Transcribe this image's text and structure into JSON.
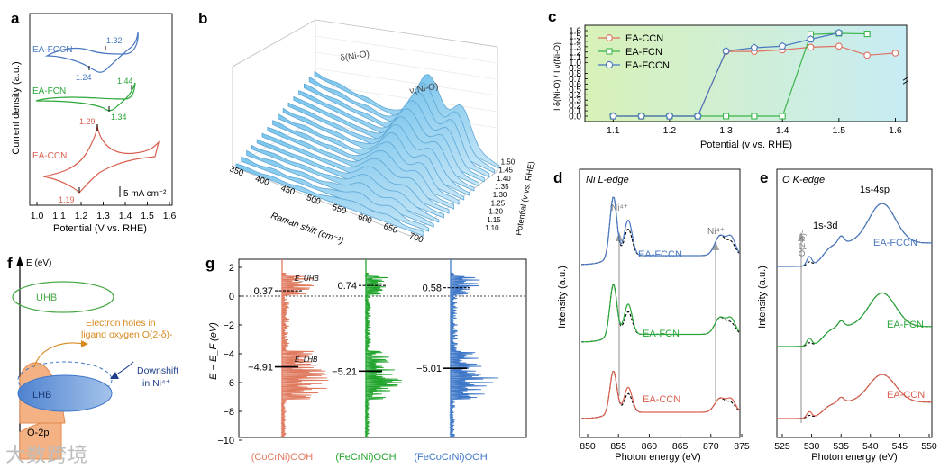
{
  "panels": {
    "a": {
      "letter": "a",
      "ylabel": "Current density (a.u.)",
      "xlabel": "Potential (V vs. RHE)",
      "ticks": [
        "1.0",
        "1.1",
        "1.2",
        "1.3",
        "1.4",
        "1.5",
        "1.6"
      ],
      "scale_bar": "5 mA cm⁻²",
      "curves": [
        {
          "name": "EA-FCCN",
          "color": "#4a78c0",
          "anodic": "1.32",
          "cathodic": "1.24"
        },
        {
          "name": "EA-FCN",
          "color": "#2aa63a",
          "anodic": "1.44",
          "cathodic": "1.34"
        },
        {
          "name": "EA-CCN",
          "color": "#d9604f",
          "anodic": "1.29",
          "cathodic": "1.19"
        }
      ]
    },
    "b": {
      "letter": "b",
      "xlabel": "Raman shift (cm⁻¹)",
      "ylabel": "Potential (v vs. RHE)",
      "xticks": [
        "350",
        "400",
        "450",
        "500",
        "550",
        "600",
        "650",
        "700"
      ],
      "yticks": [
        "1.10",
        "1.15",
        "1.20",
        "1.25",
        "1.30",
        "1.35",
        "1.40",
        "1.45",
        "1.50"
      ],
      "peak1": "δ(Ni-O)",
      "peak2": "ν(Ni-O)"
    },
    "c": {
      "letter": "c",
      "xlabel": "Potential (v vs. RHE)",
      "ylabel": "I δ(Ni-O) / I ν(Ni-O)",
      "xticks": [
        "1.1",
        "1.2",
        "1.3",
        "1.4",
        "1.5",
        "1.6"
      ],
      "yticks": [
        "0.0",
        "0.1",
        "0.2",
        "0.3",
        "0.4",
        "0.5",
        "0.6",
        "0.7",
        "0.8",
        "0.9",
        "1.0",
        "1.1",
        "1.2",
        "1.3",
        "1.4",
        "1.5",
        "1.6"
      ]
    },
    "d": {
      "letter": "d",
      "title": "Ni L-edge",
      "xlabel": "Photon energy (eV)",
      "ylabel": "Intensity (a.u.)",
      "xticks": [
        "850",
        "855",
        "860",
        "865",
        "870",
        "875"
      ],
      "marker1": "Ni⁴⁺",
      "marker2": "Ni⁴⁺",
      "labels": [
        "EA-FCCN",
        "EA-FCN",
        "EA-CCN"
      ]
    },
    "e": {
      "letter": "e",
      "title": "O K-edge",
      "xlabel": "Photon energy (eV)",
      "ylabel": "Intensity (a.u.)",
      "xticks": [
        "525",
        "530",
        "535",
        "540",
        "545",
        "550"
      ],
      "peak_a": "1s-3d",
      "peak_b": "1s-4sp",
      "marker": "O(2-δ)-",
      "labels": [
        "EA-FCCN",
        "EA-FCN",
        "EA-CCN"
      ]
    },
    "f": {
      "letter": "f",
      "axis": "E (eV)",
      "uhb": "UHB",
      "lhb": "LHB",
      "o2p": "O-2p",
      "holes_line1": "Electron holes in",
      "holes_line2": "ligand oxygen O(2-δ)-",
      "downshift_line1": "Downshift",
      "downshift_line2": "in Ni⁴⁺"
    },
    "g": {
      "letter": "g",
      "ylabel": "E − E_F (eV)",
      "yticks": [
        "2",
        "0",
        "−2",
        "−4",
        "−6",
        "−8",
        "−10"
      ],
      "uhb_tag": "E_UHB",
      "lhb_tag": "E_LHB",
      "cols": [
        {
          "name": "(CoCrNi)OOH",
          "color": "#e07a5f",
          "up": "0.37",
          "down": "−4.91"
        },
        {
          "name": "(FeCrNi)OOH",
          "color": "#22a52e",
          "up": "0.74",
          "down": "−5.21"
        },
        {
          "name": "(FeCoCrNi)OOH",
          "color": "#3f78c8",
          "up": "0.58",
          "down": "−5.01"
        }
      ]
    }
  },
  "chart_data": {
    "type": "line",
    "title": "",
    "xlabel": "Potential (v vs. RHE)",
    "ylabel": "I δ(Ni-O) / I ν(Ni-O)",
    "xlim": [
      1.05,
      1.62
    ],
    "ylim": [
      0,
      1.6
    ],
    "legend": "top-left",
    "series": [
      {
        "name": "EA-CCN",
        "color": "#e07060",
        "marker": "circle",
        "x": [
          1.1,
          1.15,
          1.2,
          1.25,
          1.3,
          1.35,
          1.4,
          1.45,
          1.5,
          1.55,
          1.6
        ],
        "y": [
          0.0,
          0.0,
          0.0,
          0.0,
          1.21,
          1.21,
          1.24,
          1.29,
          1.31,
          1.14,
          1.18
        ]
      },
      {
        "name": "EA-FCN",
        "color": "#3bb54a",
        "marker": "square",
        "x": [
          1.1,
          1.15,
          1.2,
          1.25,
          1.3,
          1.35,
          1.4,
          1.45,
          1.5,
          1.55
        ],
        "y": [
          0.0,
          0.0,
          0.0,
          0.0,
          0.0,
          0.0,
          0.0,
          1.53,
          1.55,
          1.54
        ]
      },
      {
        "name": "EA-FCCN",
        "color": "#4a78c0",
        "marker": "pentagon",
        "x": [
          1.1,
          1.15,
          1.2,
          1.25,
          1.3,
          1.35,
          1.4,
          1.45,
          1.5
        ],
        "y": [
          0.0,
          0.0,
          0.0,
          0.0,
          1.22,
          1.28,
          1.31,
          1.44,
          1.56
        ]
      }
    ]
  },
  "watermark": "大数跨境"
}
